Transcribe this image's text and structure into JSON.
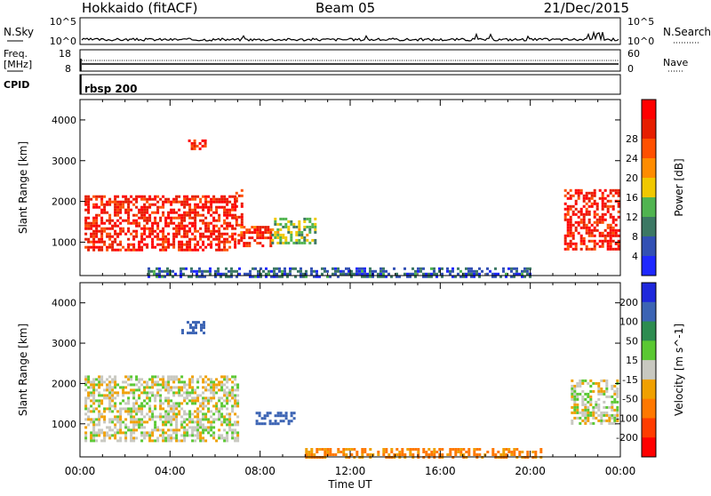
{
  "header": {
    "title": "Hokkaido (fitACF)",
    "beam": "Beam 05",
    "date": "21/Dec/2015"
  },
  "status_panel": {
    "left_label": "N.Sky",
    "right_label": "N.Search",
    "left_ticks": [
      "10^5",
      "10^0"
    ],
    "right_ticks": [
      "10^5",
      "10^0"
    ]
  },
  "freq_panel": {
    "left_label_1": "Freq.",
    "left_label_2": "[MHz]",
    "left_ticks": [
      "18",
      "8"
    ],
    "right_label": "Nave",
    "right_ticks": [
      "60",
      "0"
    ]
  },
  "cpid_panel": {
    "label": "CPID",
    "value": "rbsp 200"
  },
  "chart_data": [
    {
      "type": "heatmap",
      "title": "Power",
      "ylabel": "Slant Range [km]",
      "xlabel": "Time UT",
      "y_ticks": [
        1000,
        2000,
        3000,
        4000
      ],
      "x_ticks": [
        "00:00",
        "04:00",
        "08:00",
        "12:00",
        "16:00",
        "20:00",
        "00:00"
      ],
      "colorbar": {
        "label": "Power [dB]",
        "ticks": [
          4,
          8,
          12,
          16,
          20,
          24,
          28
        ],
        "colors": [
          "#1e28ff",
          "#3250b4",
          "#3c7864",
          "#50b450",
          "#f0c800",
          "#ff8c00",
          "#ff5000",
          "#e61e00",
          "#ff0000"
        ]
      },
      "regions": [
        {
          "t0": 0.2,
          "t1": 6.9,
          "r0": 780,
          "r1": 2150,
          "level": 26
        },
        {
          "t0": 4.8,
          "t1": 5.6,
          "r0": 3280,
          "r1": 3520,
          "level": 26
        },
        {
          "t0": 6.9,
          "t1": 7.2,
          "r0": 1400,
          "r1": 2300,
          "level": 26
        },
        {
          "t0": 7.0,
          "t1": 8.5,
          "r0": 900,
          "r1": 1400,
          "level": 24
        },
        {
          "t0": 8.5,
          "t1": 10.5,
          "r0": 1000,
          "r1": 1600,
          "level": 14
        },
        {
          "t0": 21.5,
          "t1": 23.9,
          "r0": 800,
          "r1": 2300,
          "level": 26
        },
        {
          "t0": 3.0,
          "t1": 20.0,
          "r0": 180,
          "r1": 380,
          "level": 8
        }
      ]
    },
    {
      "type": "heatmap",
      "title": "Velocity",
      "ylabel": "Slant Range [km]",
      "xlabel": "Time UT",
      "y_ticks": [
        1000,
        2000,
        3000,
        4000
      ],
      "x_ticks": [
        "00:00",
        "04:00",
        "08:00",
        "12:00",
        "16:00",
        "20:00",
        "00:00"
      ],
      "colorbar": {
        "label": "Velocity [m s^-1]",
        "ticks": [
          200,
          100,
          50,
          15,
          -15,
          -50,
          -100,
          -200
        ],
        "colors": [
          "#1e28dc",
          "#3c64b4",
          "#2d8c50",
          "#5ac832",
          "#c8c8c0",
          "#f0a000",
          "#ff7800",
          "#ff3c00",
          "#ff0000"
        ]
      },
      "regions": [
        {
          "t0": 0.2,
          "t1": 7.0,
          "r0": 600,
          "r1": 2200,
          "velocity": 0
        },
        {
          "t0": 4.5,
          "t1": 5.5,
          "r0": 3250,
          "r1": 3550,
          "velocity": 150
        },
        {
          "t0": 7.8,
          "t1": 9.5,
          "r0": 1000,
          "r1": 1300,
          "velocity": 150
        },
        {
          "t0": 10.0,
          "t1": 20.5,
          "r0": 180,
          "r1": 400,
          "velocity": -60
        },
        {
          "t0": 21.8,
          "t1": 23.9,
          "r0": 1000,
          "r1": 2100,
          "velocity": 0
        }
      ]
    }
  ],
  "x_axis": {
    "label": "Time UT",
    "ticks": [
      "00:00",
      "04:00",
      "08:00",
      "12:00",
      "16:00",
      "20:00",
      "00:00"
    ]
  }
}
